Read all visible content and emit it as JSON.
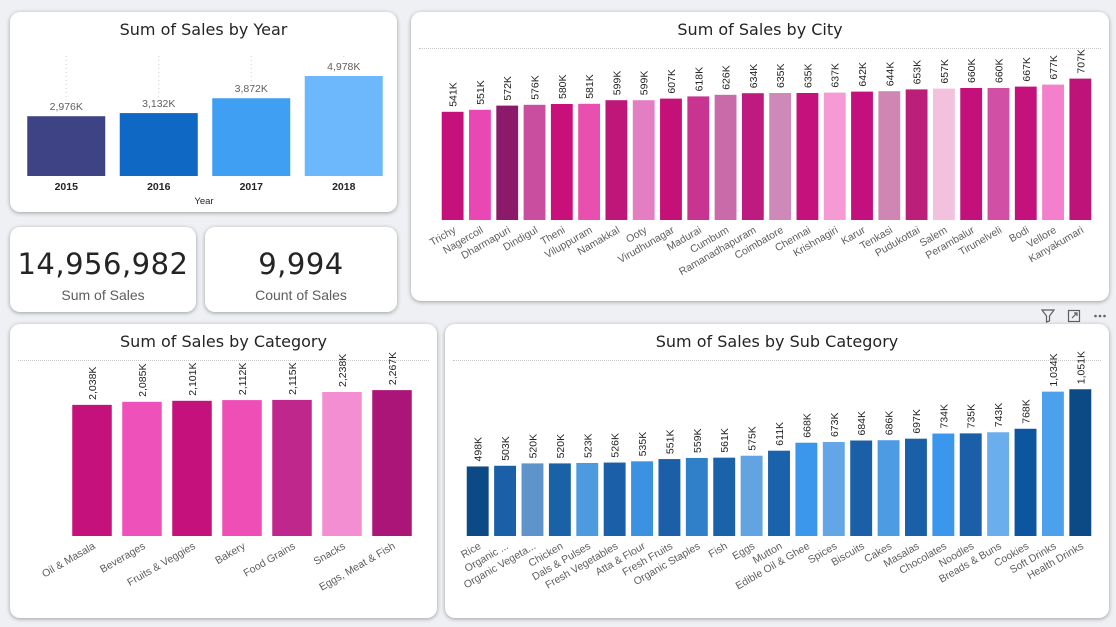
{
  "colors": {
    "year_bars": [
      "#3d4384",
      "#0f69c4",
      "#3e9ff3",
      "#6db8fc"
    ],
    "city_bars": [
      "#c4117b",
      "#e947b4",
      "#8c1a6a",
      "#c94e9f",
      "#c9107a",
      "#e84fae",
      "#be1779",
      "#e47ec3",
      "#c41077",
      "#c8348f",
      "#c96aa9",
      "#bd1b80",
      "#cf89b8",
      "#c4117b",
      "#f59ad2",
      "#c4107f",
      "#cf86b3",
      "#bb1f79",
      "#f2c1de",
      "#c4107b",
      "#d14fa4",
      "#c4117b",
      "#f47fcc",
      "#be1379",
      "#f74fbd"
    ],
    "category_bars": [
      "#c4117b",
      "#ef51bb",
      "#c4117b",
      "#ef4eb6",
      "#c0278c",
      "#f38ed2",
      "#ab1578"
    ],
    "subcategory_bars": [
      "#0b4a84",
      "#1a5fa8",
      "#5e94c9",
      "#1a62a8",
      "#4d9bdf",
      "#1a5fa8",
      "#3a92e0",
      "#1a5fa8",
      "#2f80c8",
      "#1a63aa",
      "#62a3e2",
      "#1a62ab",
      "#3a97ec",
      "#62a6e8",
      "#1a5fa8",
      "#4d9be3",
      "#1a60a8",
      "#3a97ec",
      "#1a5fa8",
      "#6aaeee",
      "#0c56a0",
      "#4da0ec"
    ]
  },
  "sales_by_year": {
    "title": "Sum of Sales by Year",
    "chart_data": {
      "type": "bar",
      "title": "Sum of Sales by Year",
      "xlabel": "Year",
      "ylabel": "",
      "categories": [
        "2015",
        "2016",
        "2017",
        "2018"
      ],
      "values": [
        2976,
        3132,
        3872,
        4978
      ],
      "data_labels": [
        "2,976K",
        "3,132K",
        "3,872K",
        "4,978K"
      ],
      "units": "K",
      "ylim": [
        0,
        5100
      ],
      "grid": false
    }
  },
  "kpi_sales": {
    "value": "14,956,982",
    "label": "Sum of Sales"
  },
  "kpi_count": {
    "value": "9,994",
    "label": "Count of Sales"
  },
  "sales_by_city": {
    "title": "Sum of Sales by City",
    "chart_data": {
      "type": "bar",
      "title": "Sum of Sales by City",
      "categories": [
        "Trichy",
        "Nagercoil",
        "Dharmapuri",
        "Dindigul",
        "Theni",
        "Viluppuram",
        "Namakkal",
        "Ooty",
        "Virudhunagar",
        "Madurai",
        "Cumbum",
        "Ramanadhapuram",
        "Coimbatore",
        "Chennai",
        "Krishnagiri",
        "Karur",
        "Tenkasi",
        "Pudukottai",
        "Salem",
        "Perambalur",
        "Tirunelveli",
        "Bodi",
        "Vellore",
        "Kanyakumari"
      ],
      "values": [
        541,
        551,
        572,
        576,
        580,
        581,
        599,
        599,
        607,
        618,
        626,
        634,
        635,
        635,
        637,
        642,
        644,
        653,
        657,
        660,
        660,
        667,
        677,
        707
      ],
      "data_labels": [
        "541K",
        "551K",
        "572K",
        "576K",
        "580K",
        "581K",
        "599K",
        "599K",
        "607K",
        "618K",
        "626K",
        "634K",
        "635K",
        "635K",
        "637K",
        "642K",
        "644K",
        "653K",
        "657K",
        "660K",
        "660K",
        "667K",
        "677K",
        "707K"
      ],
      "units": "K",
      "ylim": [
        0,
        720
      ]
    }
  },
  "sales_by_category": {
    "title": "Sum of Sales by Category",
    "chart_data": {
      "type": "bar",
      "title": "Sum of Sales by Category",
      "categories": [
        "Oil & Masala",
        "Beverages",
        "Fruits & Veggies",
        "Bakery",
        "Food Grains",
        "Snacks",
        "Eggs, Meat & Fish"
      ],
      "values": [
        2038,
        2085,
        2101,
        2112,
        2115,
        2238,
        2267
      ],
      "data_labels": [
        "2,038K",
        "2,085K",
        "2,101K",
        "2,112K",
        "2,115K",
        "2,238K",
        "2,267K"
      ],
      "units": "K",
      "ylim": [
        0,
        2300
      ]
    }
  },
  "sales_by_subcategory": {
    "title": "Sum of Sales by Sub Category",
    "chart_data": {
      "type": "bar",
      "title": "Sum of Sales by Sub Category",
      "categories": [
        "Rice",
        "Organic ...",
        "Organic Vegeta...",
        "Chicken",
        "Dals & Pulses",
        "Fresh Vegetables",
        "Atta & Flour",
        "Fresh Fruits",
        "Organic Staples",
        "Fish",
        "Eggs",
        "Mutton",
        "Edible Oil & Ghee",
        "Spices",
        "Biscuits",
        "Cakes",
        "Masalas",
        "Chocolates",
        "Noodles",
        "Breads & Buns",
        "Cookies",
        "Soft Drinks",
        "Health Drinks"
      ],
      "values": [
        498,
        503,
        520,
        520,
        523,
        526,
        535,
        551,
        559,
        561,
        575,
        611,
        668,
        673,
        684,
        686,
        697,
        734,
        735,
        743,
        768,
        1034,
        1051
      ],
      "data_labels": [
        "498K",
        "503K",
        "520K",
        "520K",
        "523K",
        "526K",
        "535K",
        "551K",
        "559K",
        "561K",
        "575K",
        "611K",
        "668K",
        "673K",
        "684K",
        "686K",
        "697K",
        "734K",
        "735K",
        "743K",
        "768K",
        "1,034K",
        "1,051K"
      ],
      "units": "K",
      "ylim": [
        0,
        1060
      ]
    }
  },
  "toolbar": {
    "filter_icon": "filter-icon",
    "focus_icon": "focus-mode-icon",
    "more_icon": "more-options-icon"
  }
}
